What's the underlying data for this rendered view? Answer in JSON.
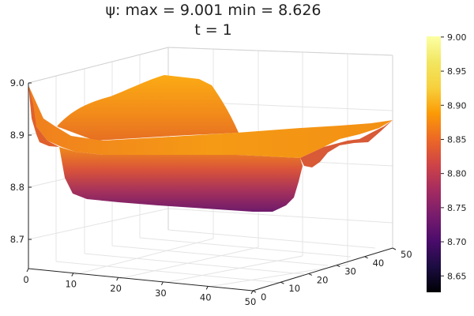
{
  "chart_data": {
    "type": "surface",
    "title": "ψ: max = 9.001 min = 8.626",
    "subtitle": "t = 1",
    "x": {
      "ticks": [
        "0",
        "10",
        "20",
        "30",
        "40",
        "50"
      ],
      "range": [
        0,
        50
      ]
    },
    "y": {
      "ticks": [
        "0",
        "10",
        "20",
        "30",
        "40",
        "50"
      ],
      "range": [
        0,
        50
      ]
    },
    "z": {
      "ticks": [
        "8.7",
        "8.8",
        "8.9",
        "9.0"
      ],
      "range": [
        8.626,
        9.001
      ]
    },
    "colorbar": {
      "colormap": "inferno",
      "ticks": [
        "8.65",
        "8.70",
        "8.75",
        "8.80",
        "8.85",
        "8.90",
        "8.95",
        "9.00"
      ],
      "range": [
        8.626,
        9.001
      ]
    },
    "grid": true,
    "stats": {
      "max": 9.001,
      "min": 8.626
    },
    "surface_profile": {
      "near_edge_z": [
        9.0,
        8.92,
        8.89,
        8.86,
        8.83,
        8.8,
        8.79,
        8.78,
        8.77,
        8.76,
        8.75,
        8.75,
        8.76,
        8.78,
        8.87,
        8.88,
        8.9,
        8.9
      ],
      "ridge_z": [
        8.905,
        8.89,
        8.89,
        8.89,
        8.9,
        8.9,
        8.9,
        8.9,
        8.9,
        8.91,
        8.92,
        8.93
      ],
      "back_hump_z": [
        8.88,
        8.9,
        8.94,
        8.97,
        8.98,
        8.97,
        8.9
      ]
    }
  }
}
